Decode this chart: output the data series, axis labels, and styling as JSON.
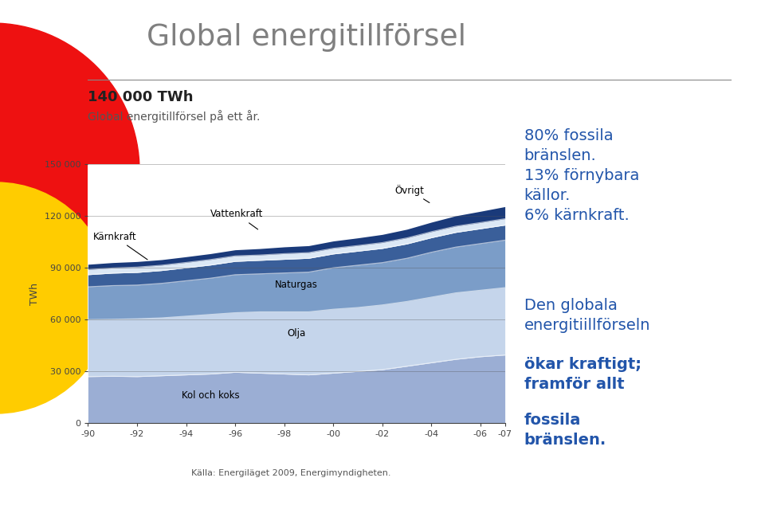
{
  "title": "Global energitillförsel",
  "subtitle_bold": "140 000 TWh",
  "subtitle": "Global energitillförsel på ett år.",
  "ylabel": "TWh",
  "source": "Källa: Energiläget 2009, Energimyndigheten.",
  "years": [
    1990,
    1991,
    1992,
    1993,
    1994,
    1995,
    1996,
    1997,
    1998,
    1999,
    2000,
    2001,
    2002,
    2003,
    2004,
    2005,
    2006,
    2007
  ],
  "kol_och_koks": [
    27000,
    27200,
    27000,
    27500,
    28000,
    28500,
    29500,
    29000,
    28500,
    28000,
    29000,
    30000,
    31000,
    33000,
    35000,
    37000,
    38500,
    39500
  ],
  "olja": [
    33000,
    33000,
    33500,
    33500,
    34000,
    34500,
    34500,
    35500,
    36000,
    36500,
    37000,
    37000,
    37500,
    37500,
    38000,
    38500,
    38500,
    39000
  ],
  "naturgas": [
    19000,
    19500,
    19500,
    20000,
    20500,
    21000,
    22000,
    22000,
    22500,
    23000,
    24000,
    24500,
    24500,
    25000,
    26000,
    26500,
    27000,
    27500
  ],
  "karnkraft": [
    7000,
    7200,
    7300,
    7400,
    7500,
    7600,
    7700,
    7800,
    7900,
    8000,
    8000,
    8100,
    8200,
    8300,
    8400,
    8500,
    8600,
    8700
  ],
  "vattenkraft": [
    3000,
    3000,
    3100,
    3100,
    3100,
    3200,
    3200,
    3100,
    3300,
    3300,
    3300,
    3300,
    3400,
    3500,
    3500,
    3600,
    3600,
    3700
  ],
  "ovrigt": [
    3000,
    3100,
    3200,
    3200,
    3300,
    3400,
    3500,
    3700,
    3900,
    4000,
    4200,
    4400,
    4700,
    5000,
    5500,
    6000,
    6500,
    7000
  ],
  "colors": {
    "kol_och_koks": "#9baed4",
    "olja": "#c5d5eb",
    "naturgas": "#7b9dc8",
    "karnkraft": "#3a5f9a",
    "vattenkraft": "#dce8f5",
    "ovrigt": "#1a3a7a"
  },
  "annotation_karnkraft": "Kärnkraft",
  "annotation_vattenkraft": "Vattenkraft",
  "annotation_ovrigt": "Övrigt",
  "annotation_naturgas": "Naturgas",
  "annotation_olja": "Olja",
  "annotation_kol": "Kol och koks",
  "title_color": "#808080",
  "blue_text_color": "#2255aa",
  "axis_color": "#444444",
  "slide_bg": "#ffffff",
  "circle_red": "#ee1111",
  "circle_yellow": "#ffcc00",
  "line_color": "#888888"
}
